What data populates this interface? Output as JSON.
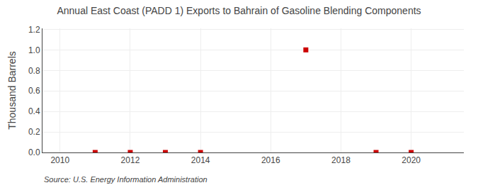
{
  "chart_data": {
    "type": "scatter",
    "title": "Annual East Coast (PADD 1) Exports to Bahrain of Gasoline Blending Components",
    "ylabel": "Thousand Barrels",
    "annotations": [
      "Source: U.S. Energy Information Administration"
    ],
    "x": [
      2011,
      2012,
      2013,
      2014,
      2017,
      2019,
      2020
    ],
    "values": [
      0.0,
      0.0,
      0.0,
      0.0,
      1.0,
      0.0,
      0.0
    ],
    "color": "#cc0000",
    "marker": "square",
    "xlim": [
      2009.5,
      2021.5
    ],
    "xticks": [
      2010,
      2012,
      2014,
      2016,
      2018,
      2020
    ],
    "ylim": [
      0.0,
      1.21
    ],
    "yticks": [
      {
        "value": 0.0,
        "label": "0.0"
      },
      0.2,
      0.4,
      0.6,
      0.8,
      {
        "value": 1.0,
        "label": "1.0"
      },
      1.2
    ],
    "grid": true
  }
}
